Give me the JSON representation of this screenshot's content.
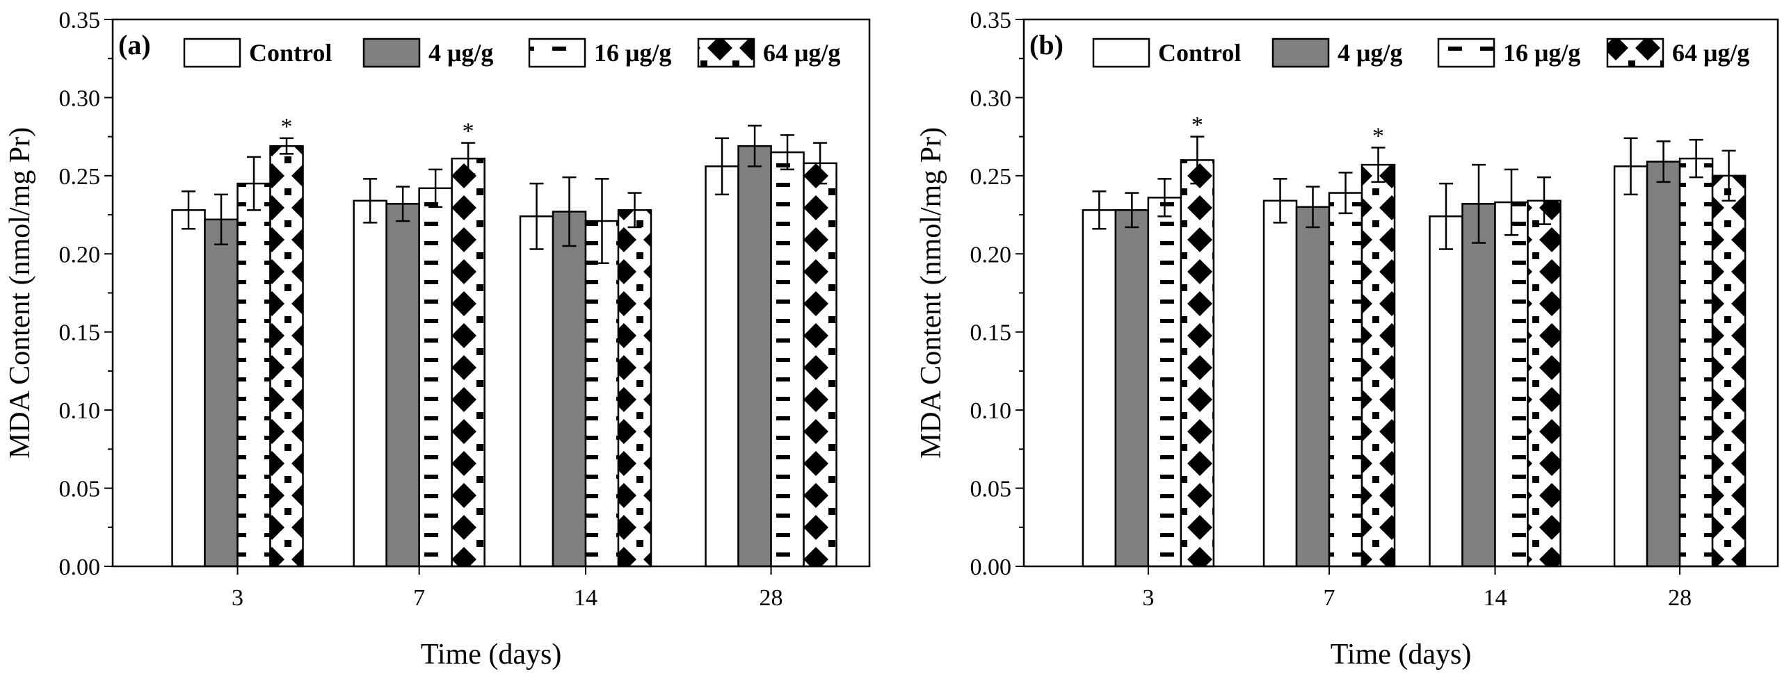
{
  "chart_data": [
    {
      "type": "bar",
      "panel_label": "(a)",
      "title": "",
      "xlabel": "Time (days)",
      "ylabel": "MDA Content (nmol/mg Pr)",
      "ylim": [
        0,
        0.35
      ],
      "yticks": [
        "0.00",
        "0.05",
        "0.10",
        "0.15",
        "0.20",
        "0.25",
        "0.30",
        "0.35"
      ],
      "categories": [
        "3",
        "7",
        "14",
        "28"
      ],
      "legend_position": "top",
      "series": [
        {
          "name": "Control",
          "pattern": "white",
          "values": [
            0.228,
            0.234,
            0.224,
            0.256
          ],
          "errors": [
            0.012,
            0.014,
            0.021,
            0.018
          ]
        },
        {
          "name": "4 μg/g",
          "pattern": "gray",
          "values": [
            0.222,
            0.232,
            0.227,
            0.269
          ],
          "errors": [
            0.016,
            0.011,
            0.022,
            0.013
          ]
        },
        {
          "name": "16 μg/g",
          "pattern": "dash",
          "values": [
            0.245,
            0.242,
            0.221,
            0.265
          ],
          "errors": [
            0.017,
            0.012,
            0.027,
            0.011
          ]
        },
        {
          "name": "64 μg/g",
          "pattern": "dots",
          "values": [
            0.269,
            0.261,
            0.228,
            0.258
          ],
          "errors": [
            0.005,
            0.01,
            0.011,
            0.013
          ]
        }
      ],
      "significance": [
        {
          "series": "64 μg/g",
          "category": "3",
          "mark": "*"
        },
        {
          "series": "64 μg/g",
          "category": "7",
          "mark": "*"
        }
      ]
    },
    {
      "type": "bar",
      "panel_label": "(b)",
      "title": "",
      "xlabel": "Time (days)",
      "ylabel": "MDA Content (nmol/mg Pr)",
      "ylim": [
        0,
        0.35
      ],
      "yticks": [
        "0.00",
        "0.05",
        "0.10",
        "0.15",
        "0.20",
        "0.25",
        "0.30",
        "0.35"
      ],
      "categories": [
        "3",
        "7",
        "14",
        "28"
      ],
      "legend_position": "top",
      "series": [
        {
          "name": "Control",
          "pattern": "white",
          "values": [
            0.228,
            0.234,
            0.224,
            0.256
          ],
          "errors": [
            0.012,
            0.014,
            0.021,
            0.018
          ]
        },
        {
          "name": "4 μg/g",
          "pattern": "gray",
          "values": [
            0.228,
            0.23,
            0.232,
            0.259
          ],
          "errors": [
            0.011,
            0.013,
            0.025,
            0.013
          ]
        },
        {
          "name": "16 μg/g",
          "pattern": "dash",
          "values": [
            0.236,
            0.239,
            0.233,
            0.261
          ],
          "errors": [
            0.012,
            0.013,
            0.021,
            0.012
          ]
        },
        {
          "name": "64 μg/g",
          "pattern": "dots",
          "values": [
            0.26,
            0.257,
            0.234,
            0.25
          ],
          "errors": [
            0.015,
            0.011,
            0.015,
            0.016
          ]
        }
      ],
      "significance": [
        {
          "series": "64 μg/g",
          "category": "3",
          "mark": "*"
        },
        {
          "series": "64 μg/g",
          "category": "7",
          "mark": "*"
        }
      ]
    }
  ]
}
